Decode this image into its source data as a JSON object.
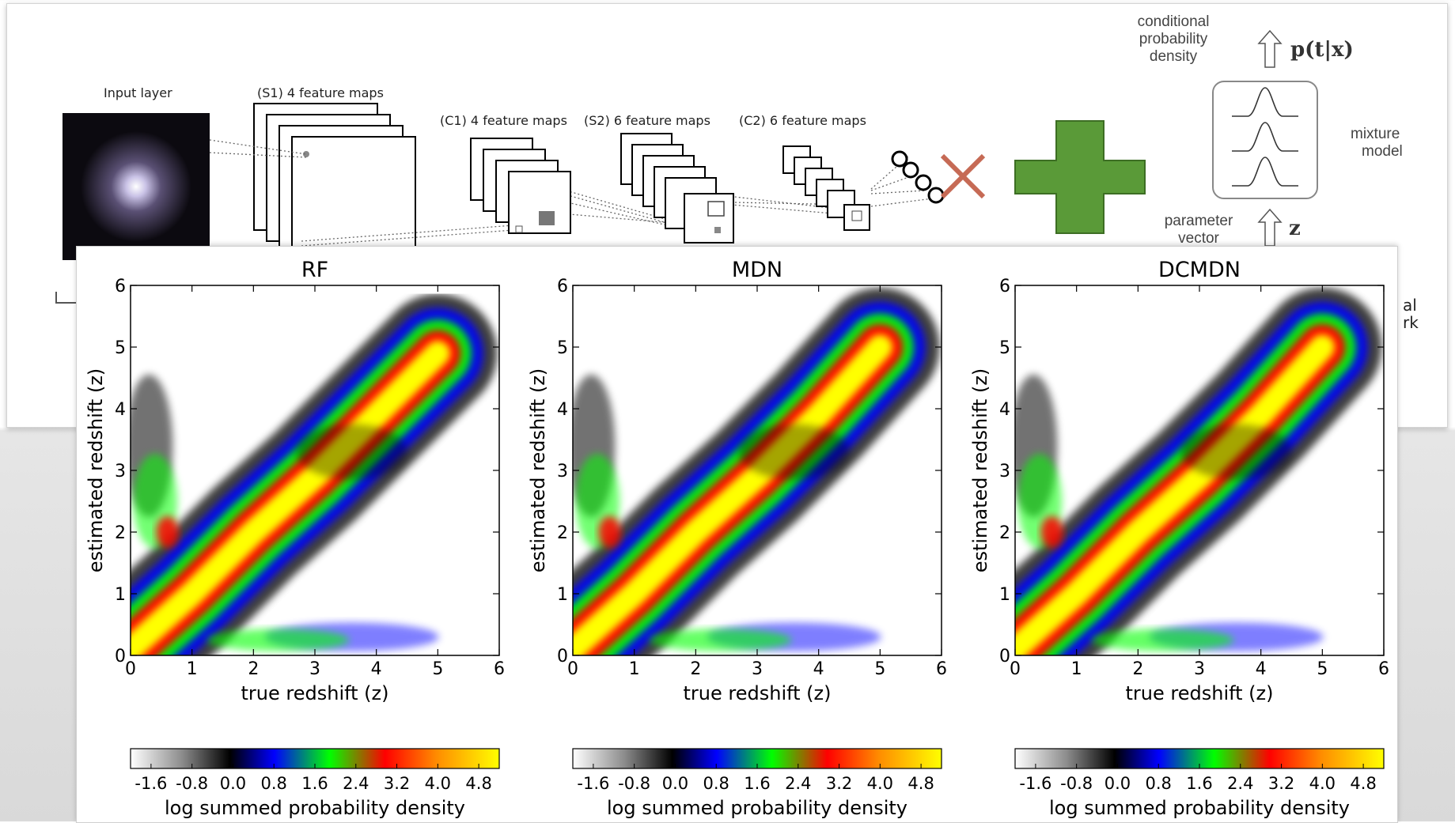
{
  "diagram": {
    "input_layer": "Input layer",
    "s1": "(S1) 4 feature maps",
    "c1": "(C1) 4 feature maps",
    "s2": "(S2) 6 feature maps",
    "c2": "(C2) 6 feature maps",
    "conditional": [
      "conditional",
      "probability",
      "density"
    ],
    "p_t_x": "p(t|x)",
    "mixture": [
      "mixture",
      "model"
    ],
    "parameter": [
      "parameter",
      "vector"
    ],
    "z": "z",
    "clipped_right": [
      "al",
      "rk"
    ]
  },
  "colorbar": {
    "ticks": [
      "-1.6",
      "-0.8",
      "0.0",
      "0.8",
      "1.6",
      "2.4",
      "3.2",
      "4.0",
      "4.8"
    ],
    "label": "log summed probability density",
    "colors": [
      "#ffffff",
      "#8c8c8c",
      "#000000",
      "#0000ff",
      "#00ff00",
      "#ff0000",
      "#ffff00"
    ]
  },
  "chart_data": [
    {
      "type": "heatmap",
      "title": "RF",
      "xlabel": "true redshift (z)",
      "ylabel": "estimated redshift (z)",
      "xlim": [
        0,
        6
      ],
      "ylim": [
        0,
        6
      ],
      "xticks": [
        "0",
        "1",
        "2",
        "3",
        "4",
        "5",
        "6"
      ],
      "yticks": [
        "0",
        "1",
        "2",
        "3",
        "4",
        "5",
        "6"
      ],
      "colorbar_range": [
        -2.0,
        5.2
      ],
      "ridge": [
        [
          0,
          0.1
        ],
        [
          1,
          1.0
        ],
        [
          2,
          2.0
        ],
        [
          3,
          2.9
        ],
        [
          4,
          3.9
        ],
        [
          5,
          4.9
        ]
      ]
    },
    {
      "type": "heatmap",
      "title": "MDN",
      "xlabel": "true redshift (z)",
      "ylabel": "estimated redshift (z)",
      "xlim": [
        0,
        6
      ],
      "ylim": [
        0,
        6
      ],
      "xticks": [
        "0",
        "1",
        "2",
        "3",
        "4",
        "5",
        "6"
      ],
      "yticks": [
        "0",
        "1",
        "2",
        "3",
        "4",
        "5",
        "6"
      ],
      "colorbar_range": [
        -2.0,
        5.2
      ],
      "ridge": [
        [
          0,
          0.1
        ],
        [
          1,
          1.0
        ],
        [
          2,
          2.0
        ],
        [
          3,
          2.9
        ],
        [
          4,
          3.9
        ],
        [
          5,
          5.0
        ]
      ]
    },
    {
      "type": "heatmap",
      "title": "DCMDN",
      "xlabel": "true redshift (z)",
      "ylabel": "estimated redshift (z)",
      "xlim": [
        0,
        6
      ],
      "ylim": [
        0,
        6
      ],
      "xticks": [
        "0",
        "1",
        "2",
        "3",
        "4",
        "5",
        "6"
      ],
      "yticks": [
        "0",
        "1",
        "2",
        "3",
        "4",
        "5",
        "6"
      ],
      "colorbar_range": [
        -2.0,
        5.2
      ],
      "ridge": [
        [
          0,
          0.1
        ],
        [
          1,
          1.0
        ],
        [
          2,
          2.0
        ],
        [
          3,
          2.9
        ],
        [
          4,
          3.9
        ],
        [
          5,
          5.0
        ]
      ]
    }
  ]
}
